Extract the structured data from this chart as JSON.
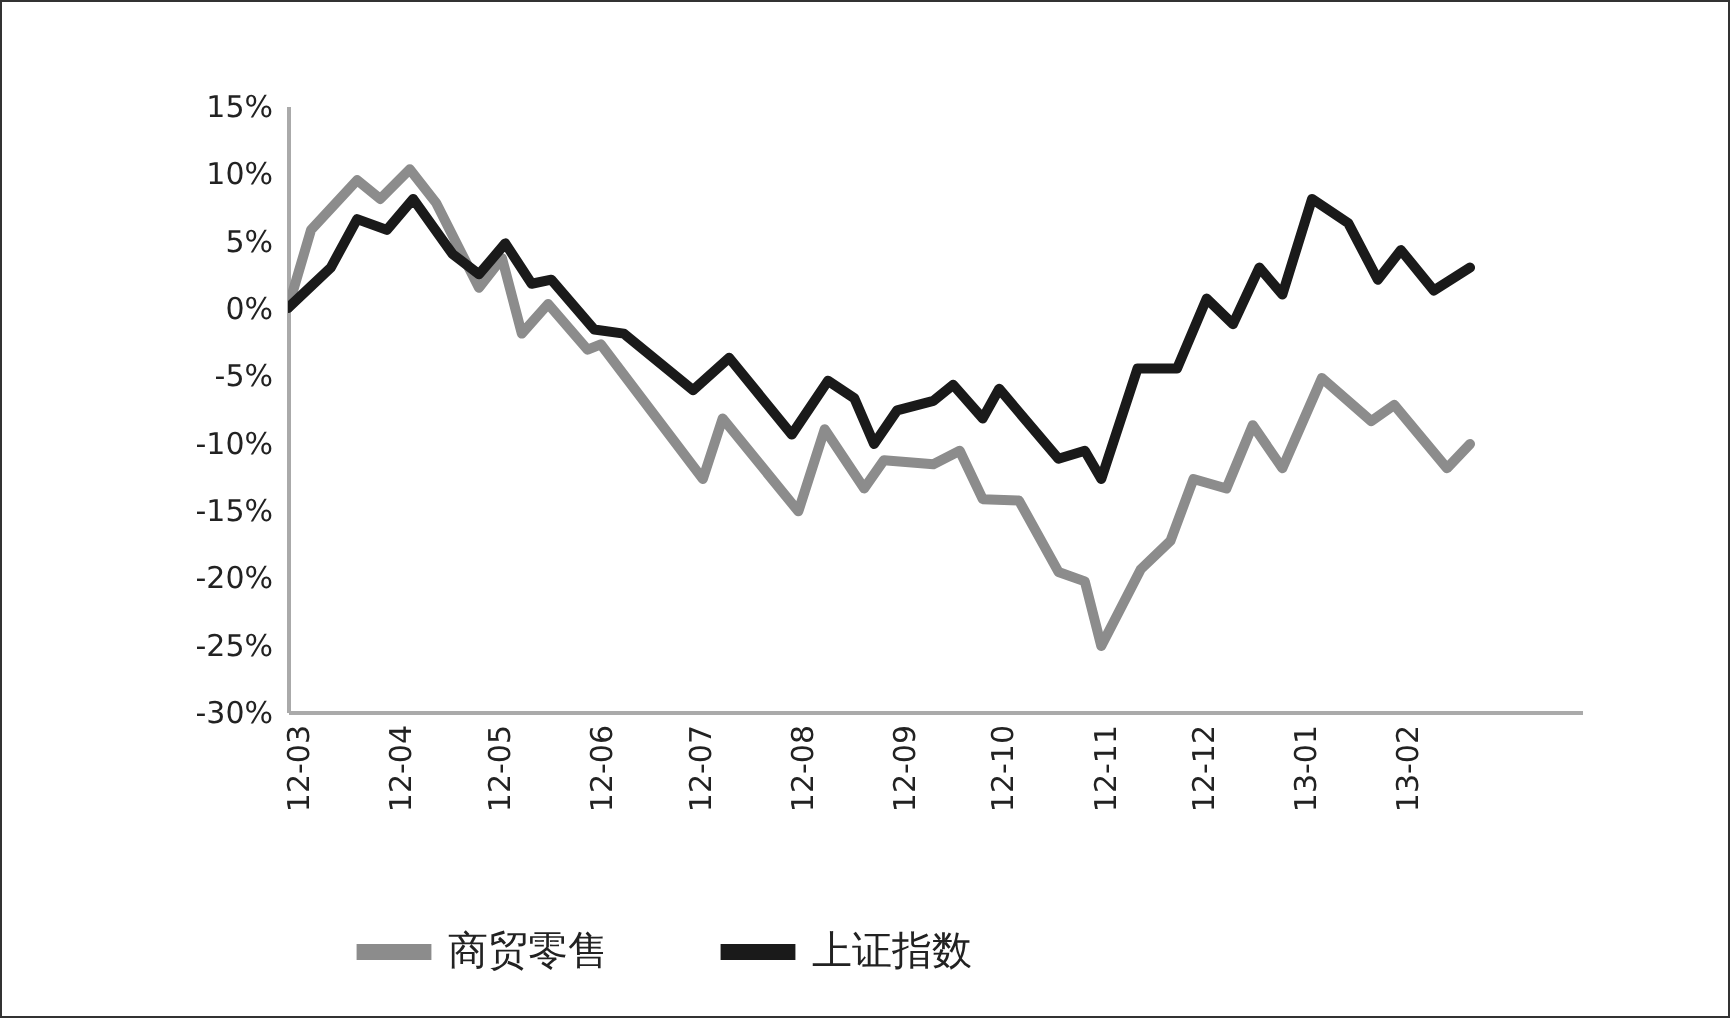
{
  "chart_data": {
    "type": "line",
    "series": [
      {
        "name": "商贸零售",
        "color": "#8c8c8c",
        "x": [
          "2012-02-27",
          "2012-03-05",
          "2012-03-19",
          "2012-03-26",
          "2012-04-04",
          "2012-04-12",
          "2012-04-25",
          "2012-05-02",
          "2012-05-08",
          "2012-05-16",
          "2012-05-28",
          "2012-06-01",
          "2012-07-02",
          "2012-07-08",
          "2012-07-31",
          "2012-08-08",
          "2012-08-20",
          "2012-08-26",
          "2012-09-10",
          "2012-09-18",
          "2012-09-25",
          "2012-10-06",
          "2012-10-18",
          "2012-10-26",
          "2012-10-31",
          "2012-11-12",
          "2012-11-21",
          "2012-11-28",
          "2012-12-08",
          "2012-12-16",
          "2012-12-25",
          "2013-01-06",
          "2013-01-21",
          "2013-01-28",
          "2013-02-13",
          "2013-02-20"
        ],
        "values": [
          0,
          5.8,
          9.5,
          8.1,
          10.3,
          7.8,
          1.5,
          3.7,
          -1.9,
          0.3,
          -3.1,
          -2.7,
          -12.7,
          -8.2,
          -15.1,
          -9,
          -13.4,
          -11.3,
          -11.6,
          -10.6,
          -14.2,
          -14.3,
          -19.6,
          -20.3,
          -25.1,
          -19.4,
          -17.3,
          -12.7,
          -13.4,
          -8.7,
          -11.9,
          -5.2,
          -8.4,
          -7.2,
          -11.9,
          -10.1
        ]
      },
      {
        "name": "上证指数",
        "color": "#1a1a1a",
        "x": [
          "2012-02-27",
          "2012-03-11",
          "2012-03-19",
          "2012-03-28",
          "2012-04-05",
          "2012-04-17",
          "2012-04-25",
          "2012-05-03",
          "2012-05-11",
          "2012-05-17",
          "2012-05-30",
          "2012-06-08",
          "2012-06-29",
          "2012-07-10",
          "2012-07-29",
          "2012-08-09",
          "2012-08-17",
          "2012-08-23",
          "2012-08-30",
          "2012-09-10",
          "2012-09-16",
          "2012-09-25",
          "2012-09-30",
          "2012-10-18",
          "2012-10-26",
          "2012-10-31",
          "2012-11-11",
          "2012-11-23",
          "2012-12-02",
          "2012-12-10",
          "2012-12-18",
          "2012-12-25",
          "2013-01-03",
          "2013-01-14",
          "2013-01-23",
          "2013-01-30",
          "2013-02-09",
          "2013-02-20"
        ],
        "values": [
          0,
          3,
          6.6,
          5.8,
          8.1,
          4,
          2.5,
          4.8,
          1.8,
          2.1,
          -1.6,
          -1.9,
          -6.1,
          -3.7,
          -9.4,
          -5.4,
          -6.7,
          -10.1,
          -7.6,
          -6.9,
          -5.7,
          -8.2,
          -6,
          -11.2,
          -10.6,
          -12.7,
          -4.5,
          -4.5,
          0.7,
          -1.2,
          3,
          1,
          8.1,
          6.3,
          2.1,
          4.3,
          1.3,
          3
        ]
      }
    ],
    "xlim": [
      "2012-02-27",
      "2013-03-26"
    ],
    "xticks": [
      {
        "value": "2012-03-01",
        "label": "12-03"
      },
      {
        "value": "2012-04-01",
        "label": "12-04"
      },
      {
        "value": "2012-05-01",
        "label": "12-05"
      },
      {
        "value": "2012-06-01",
        "label": "12-06"
      },
      {
        "value": "2012-07-01",
        "label": "12-07"
      },
      {
        "value": "2012-08-01",
        "label": "12-08"
      },
      {
        "value": "2012-09-01",
        "label": "12-09"
      },
      {
        "value": "2012-10-01",
        "label": "12-10"
      },
      {
        "value": "2012-11-01",
        "label": "12-11"
      },
      {
        "value": "2012-12-01",
        "label": "12-12"
      },
      {
        "value": "2013-01-01",
        "label": "13-01"
      },
      {
        "value": "2013-02-01",
        "label": "13-02"
      }
    ],
    "ylim": [
      -30,
      15
    ],
    "yticks": [
      {
        "value": -30,
        "label": "-30%"
      },
      {
        "value": -25,
        "label": "-25%"
      },
      {
        "value": -20,
        "label": "-20%"
      },
      {
        "value": -15,
        "label": "-15%"
      },
      {
        "value": -10,
        "label": "-10%"
      },
      {
        "value": -5,
        "label": "-5%"
      },
      {
        "value": 0,
        "label": "0%"
      },
      {
        "value": 5,
        "label": "5%"
      },
      {
        "value": 10,
        "label": "10%"
      },
      {
        "value": 15,
        "label": "15%"
      }
    ],
    "legend": "bottom"
  }
}
